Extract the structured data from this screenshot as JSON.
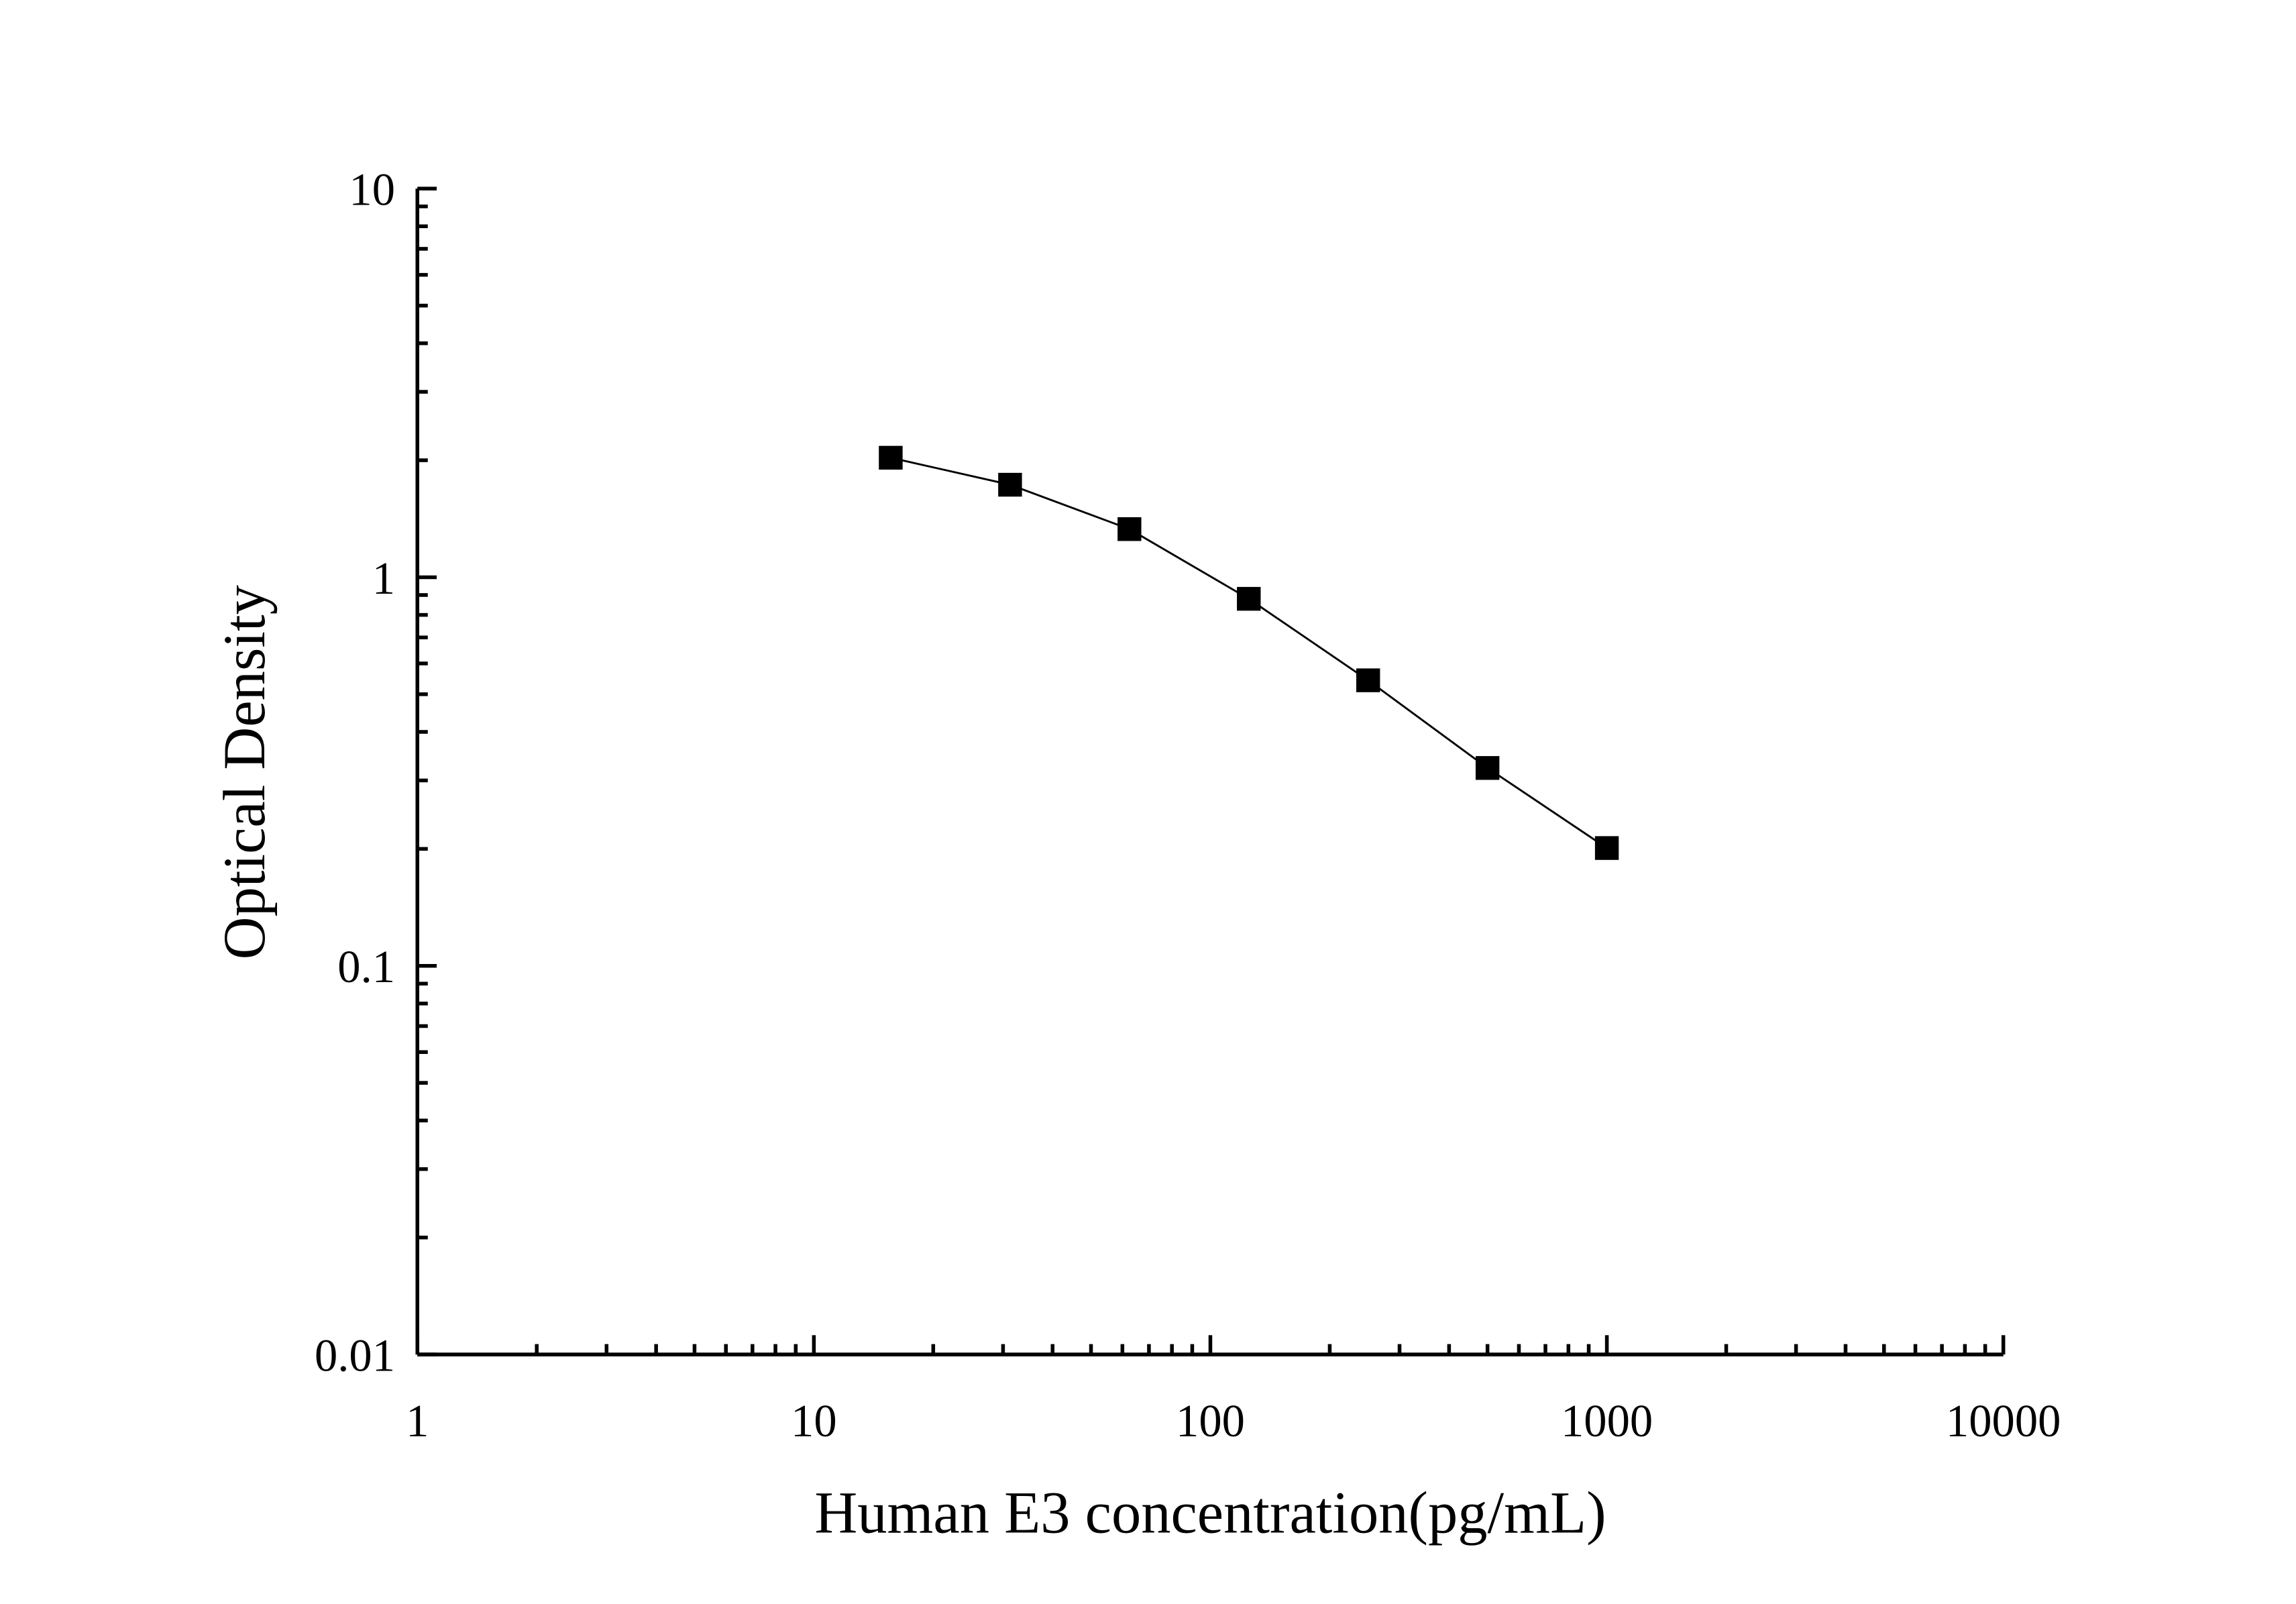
{
  "chart_data": {
    "type": "line",
    "xlabel": "Human E3 concentration(pg/mL)",
    "ylabel": "Optical Density",
    "x": [
      15.625,
      31.25,
      62.5,
      125,
      250,
      500,
      1000
    ],
    "series": [
      {
        "color": "#000000",
        "values": [
          2.03,
          1.73,
          1.33,
          0.88,
          0.543,
          0.323,
          0.201
        ]
      }
    ],
    "xscale": "log",
    "yscale": "log",
    "xlim": [
      1,
      10000
    ],
    "ylim": [
      0.01,
      10
    ],
    "xticks": [
      1,
      10,
      100,
      1000,
      10000
    ],
    "yticks": [
      0.01,
      0.1,
      1,
      10
    ],
    "marker": "square",
    "grid": false
  }
}
